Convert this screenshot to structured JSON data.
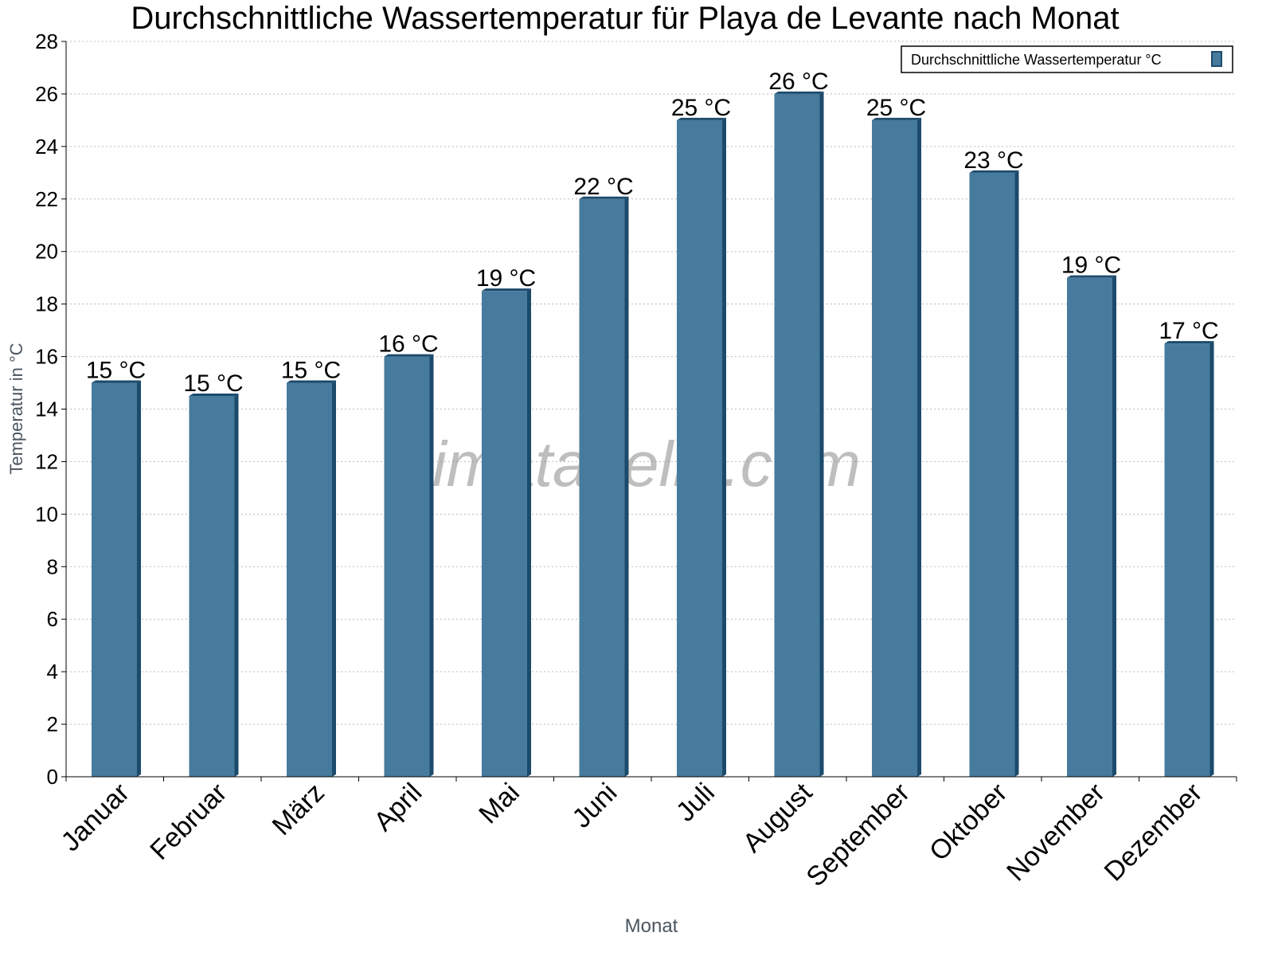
{
  "chart_data": {
    "type": "bar",
    "title": "Durchschnittliche Wassertemperatur für Playa de Levante nach Monat",
    "xlabel": "Monat",
    "ylabel": "Temperatur in °C",
    "ylim": [
      0,
      28
    ],
    "yticks": [
      0,
      2,
      4,
      6,
      8,
      10,
      12,
      14,
      16,
      18,
      20,
      22,
      24,
      26,
      28
    ],
    "grid": true,
    "legend_position": "top-right",
    "categories": [
      "Januar",
      "Februar",
      "März",
      "April",
      "Mai",
      "Juni",
      "Juli",
      "August",
      "September",
      "Oktober",
      "November",
      "Dezember"
    ],
    "series": [
      {
        "name": "Durchschnittliche Wassertemperatur °C",
        "values": [
          15,
          14.5,
          15,
          16,
          18.5,
          22,
          25,
          26,
          25,
          23,
          19,
          16.5
        ],
        "labels": [
          "15 °C",
          "15 °C",
          "15 °C",
          "16 °C",
          "19 °C",
          "22 °C",
          "25 °C",
          "26 °C",
          "25 °C",
          "23 °C",
          "19 °C",
          "17 °C"
        ],
        "color": "#467b9e",
        "edge_color": "#1c4a6b"
      }
    ],
    "watermark": "klimatabelle.com"
  }
}
